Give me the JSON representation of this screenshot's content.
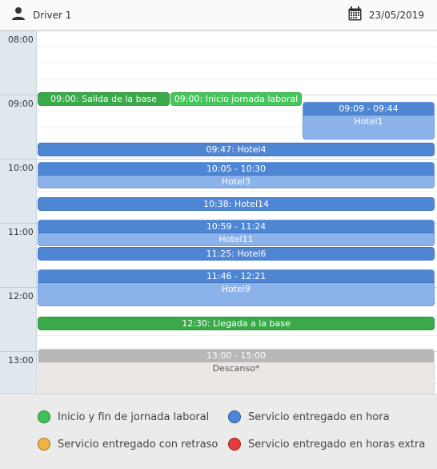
{
  "header": {
    "driver_label": "Driver 1",
    "date_label": "23/05/2019",
    "user_icon": "user-icon",
    "calendar_icon": "calendar-icon"
  },
  "hours": [
    "08:00",
    "09:00",
    "10:00",
    "11:00",
    "12:00",
    "13:00"
  ],
  "events": {
    "salida": "09:00: Salida de la base",
    "inicio": "09:00: Inicio jornada laboral",
    "hotel1_time": "09:09 - 09:44",
    "hotel1_name": "Hotel1",
    "hotel4": "09:47: Hotel4",
    "hotel3_time": "10:05 - 10:30",
    "hotel3_name": "Hotel3",
    "hotel14": "10:38: Hotel14",
    "hotel11_time": "10:59 - 11:24",
    "hotel11_name": "Hotel11",
    "hotel6": "11:25: Hotel6",
    "hotel9_time": "11:46 - 12:21",
    "hotel9_name": "Hotel9",
    "llegada": "12:30: Llegada a la base",
    "descanso_time": "13:00 - 15:00",
    "descanso_name": "Descanso*"
  },
  "legend": [
    {
      "label": "Inicio y fin de jornada laboral",
      "color": "#3cc45a"
    },
    {
      "label": "Servicio entregado en hora",
      "color": "#4a86d8"
    },
    {
      "label": "Servicio entregado con retraso",
      "color": "#f0b440"
    },
    {
      "label": "Servicio entregado en horas extra",
      "color": "#e23c3c"
    }
  ]
}
